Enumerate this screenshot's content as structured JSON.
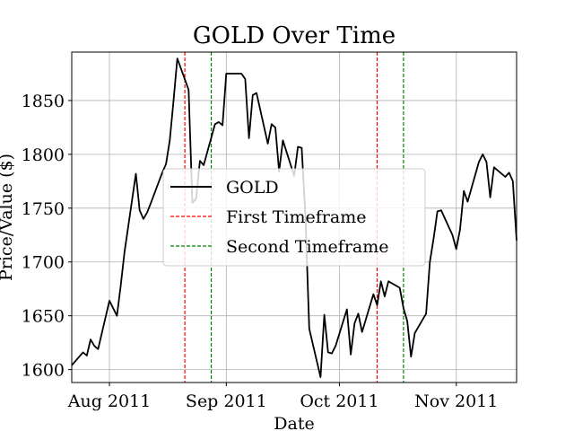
{
  "chart_data": {
    "type": "line",
    "title": "GOLD Over Time",
    "xlabel": "Date",
    "ylabel": "Price/Value ($)",
    "grid": true,
    "legend_placement": "center",
    "xlim": [
      "2011-07-22",
      "2011-11-17"
    ],
    "ylim": [
      1588,
      1895
    ],
    "x_ticks": [
      {
        "date": "2011-08-01",
        "label": "Aug 2011"
      },
      {
        "date": "2011-09-01",
        "label": "Sep 2011"
      },
      {
        "date": "2011-10-01",
        "label": "Oct 2011"
      },
      {
        "date": "2011-11-01",
        "label": "Nov 2011"
      }
    ],
    "y_ticks": [
      1600,
      1650,
      1700,
      1750,
      1800,
      1850
    ],
    "series": [
      {
        "name": "GOLD",
        "color": "#000000",
        "points": [
          [
            "2011-07-22",
            1604
          ],
          [
            "2011-07-25",
            1616
          ],
          [
            "2011-07-26",
            1613
          ],
          [
            "2011-07-27",
            1628
          ],
          [
            "2011-07-28",
            1622
          ],
          [
            "2011-07-29",
            1619
          ],
          [
            "2011-08-01",
            1664
          ],
          [
            "2011-08-02",
            1657
          ],
          [
            "2011-08-03",
            1650
          ],
          [
            "2011-08-04",
            1678
          ],
          [
            "2011-08-05",
            1709
          ],
          [
            "2011-08-08",
            1782
          ],
          [
            "2011-08-09",
            1748
          ],
          [
            "2011-08-10",
            1740
          ],
          [
            "2011-08-11",
            1746
          ],
          [
            "2011-08-12",
            1755
          ],
          [
            "2011-08-15",
            1783
          ],
          [
            "2011-08-16",
            1791
          ],
          [
            "2011-08-17",
            1813
          ],
          [
            "2011-08-18",
            1850
          ],
          [
            "2011-08-19",
            1889
          ],
          [
            "2011-08-22",
            1860
          ],
          [
            "2011-08-23",
            1755
          ],
          [
            "2011-08-24",
            1759
          ],
          [
            "2011-08-25",
            1794
          ],
          [
            "2011-08-26",
            1790
          ],
          [
            "2011-08-29",
            1828
          ],
          [
            "2011-08-30",
            1830
          ],
          [
            "2011-08-31",
            1827
          ],
          [
            "2011-09-01",
            1875
          ],
          [
            "2011-09-02",
            1875
          ],
          [
            "2011-09-05",
            1875
          ],
          [
            "2011-09-06",
            1870
          ],
          [
            "2011-09-07",
            1815
          ],
          [
            "2011-09-08",
            1855
          ],
          [
            "2011-09-09",
            1857
          ],
          [
            "2011-09-12",
            1810
          ],
          [
            "2011-09-13",
            1828
          ],
          [
            "2011-09-14",
            1825
          ],
          [
            "2011-09-15",
            1784
          ],
          [
            "2011-09-16",
            1813
          ],
          [
            "2011-09-19",
            1780
          ],
          [
            "2011-09-20",
            1807
          ],
          [
            "2011-09-21",
            1806
          ],
          [
            "2011-09-22",
            1741
          ],
          [
            "2011-09-23",
            1638
          ],
          [
            "2011-09-26",
            1593
          ],
          [
            "2011-09-27",
            1651
          ],
          [
            "2011-09-28",
            1616
          ],
          [
            "2011-09-29",
            1615
          ],
          [
            "2011-09-30",
            1622
          ],
          [
            "2011-10-03",
            1656
          ],
          [
            "2011-10-04",
            1614
          ],
          [
            "2011-10-05",
            1643
          ],
          [
            "2011-10-06",
            1652
          ],
          [
            "2011-10-07",
            1635
          ],
          [
            "2011-10-10",
            1670
          ],
          [
            "2011-10-11",
            1660
          ],
          [
            "2011-10-12",
            1682
          ],
          [
            "2011-10-13",
            1668
          ],
          [
            "2011-10-14",
            1682
          ],
          [
            "2011-10-17",
            1676
          ],
          [
            "2011-10-18",
            1657
          ],
          [
            "2011-10-19",
            1645
          ],
          [
            "2011-10-20",
            1612
          ],
          [
            "2011-10-21",
            1634
          ],
          [
            "2011-10-24",
            1652
          ],
          [
            "2011-10-25",
            1700
          ],
          [
            "2011-10-26",
            1722
          ],
          [
            "2011-10-27",
            1747
          ],
          [
            "2011-10-28",
            1748
          ],
          [
            "2011-10-31",
            1725
          ],
          [
            "2011-11-01",
            1712
          ],
          [
            "2011-11-02",
            1730
          ],
          [
            "2011-11-03",
            1766
          ],
          [
            "2011-11-04",
            1756
          ],
          [
            "2011-11-07",
            1793
          ],
          [
            "2011-11-08",
            1800
          ],
          [
            "2011-11-09",
            1793
          ],
          [
            "2011-11-10",
            1760
          ],
          [
            "2011-11-11",
            1788
          ],
          [
            "2011-11-14",
            1779
          ],
          [
            "2011-11-15",
            1783
          ],
          [
            "2011-11-16",
            1775
          ],
          [
            "2011-11-17",
            1720
          ]
        ]
      }
    ],
    "timeframes": [
      {
        "name": "First Timeframe",
        "color": "#ff0000",
        "dates": [
          "2011-08-21",
          "2011-10-11"
        ]
      },
      {
        "name": "Second Timeframe",
        "color": "#008000",
        "dates": [
          "2011-08-28",
          "2011-10-18"
        ]
      }
    ]
  }
}
